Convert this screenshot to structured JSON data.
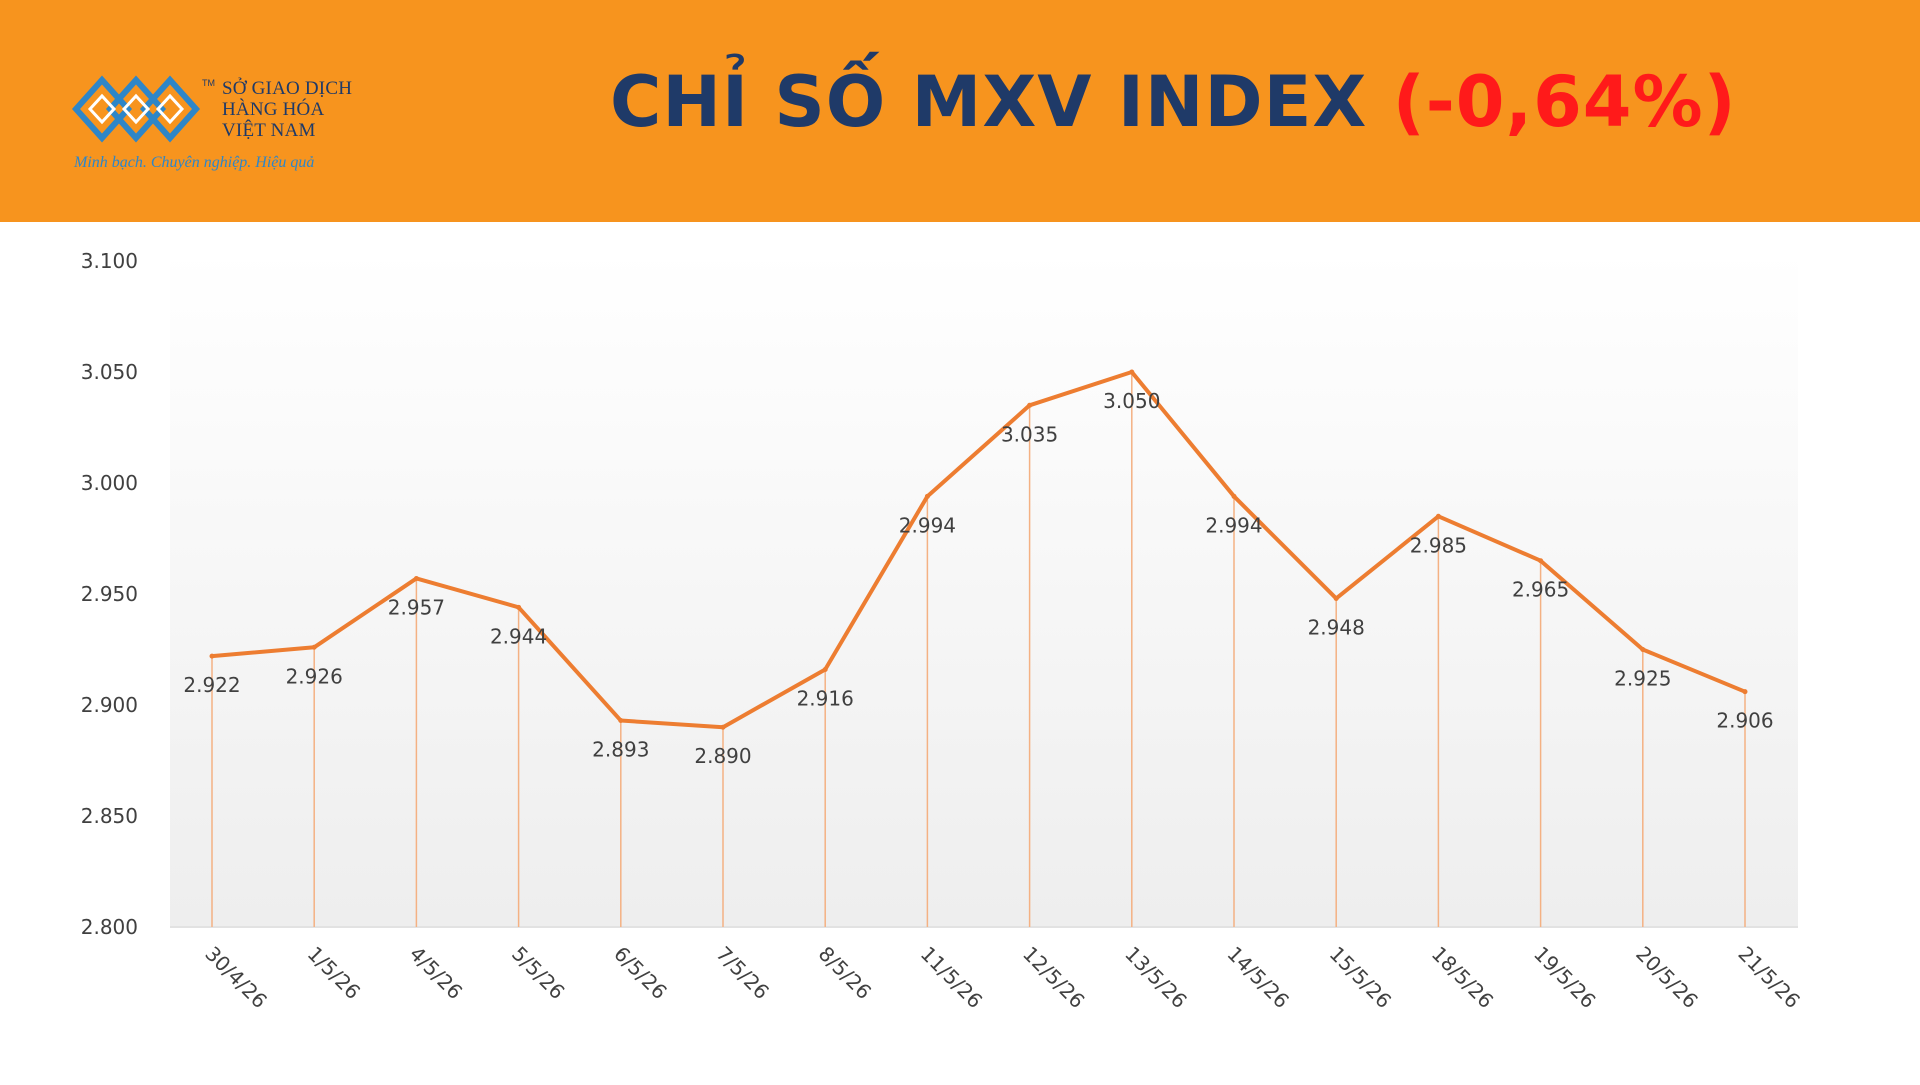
{
  "header": {
    "logo": {
      "name_line1": "SỞ GIAO DỊCH",
      "name_line2": "HÀNG HÓA",
      "name_line3": "VIỆT NAM",
      "trademark": "TM",
      "tagline": "Minh bạch. Chuyên nghiệp. Hiệu quả"
    },
    "title_main": "CHỈ SỐ MXV INDEX",
    "title_change": "(-0,64%)"
  },
  "colors": {
    "header_bg": "#f7941e",
    "title_text": "#1f3a68",
    "change_text": "#ff1a1a",
    "line": "#ed7d31",
    "logo_blue": "#2e86c8"
  },
  "chart_data": {
    "type": "line",
    "categories": [
      "30/4/26",
      "1/5/26",
      "4/5/26",
      "5/5/26",
      "6/5/26",
      "7/5/26",
      "8/5/26",
      "11/5/26",
      "12/5/26",
      "13/5/26",
      "14/5/26",
      "15/5/26",
      "18/5/26",
      "19/5/26",
      "20/5/26",
      "21/5/26"
    ],
    "values": [
      2922,
      2926,
      2957,
      2944,
      2893,
      2890,
      2916,
      2994,
      3035,
      3050,
      2994,
      2948,
      2985,
      2965,
      2925,
      2906
    ],
    "data_labels": [
      "2.922",
      "2.926",
      "2.957",
      "2.944",
      "2.893",
      "2.890",
      "2.916",
      "2.994",
      "3.035",
      "3.050",
      "2.994",
      "2.948",
      "2.985",
      "2.965",
      "2.925",
      "2.906"
    ],
    "ylim": [
      2800,
      3100
    ],
    "yticks": [
      2800,
      2850,
      2900,
      2950,
      3000,
      3050,
      3100
    ],
    "ytick_labels": [
      "2.800",
      "2.850",
      "2.900",
      "2.950",
      "3.000",
      "3.050",
      "3.100"
    ],
    "drop_lines": true,
    "grid": false,
    "title": "",
    "xlabel": "",
    "ylabel": ""
  }
}
